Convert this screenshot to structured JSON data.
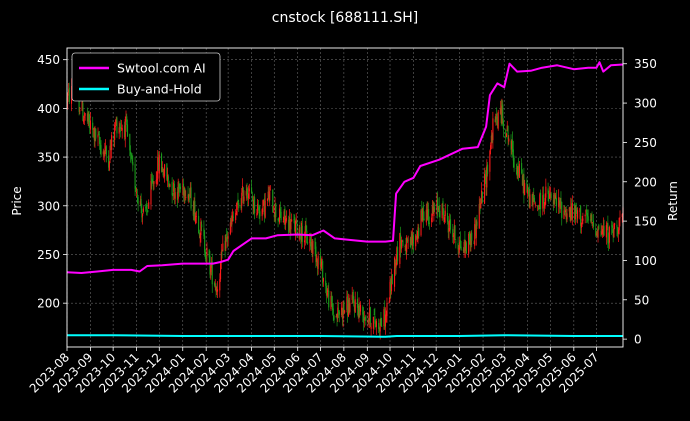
{
  "chart_data": {
    "type": "line",
    "title": "cnstock [688111.SH]",
    "left_axis": {
      "label": "Price",
      "range": [
        155,
        462
      ],
      "ticks": [
        200,
        250,
        300,
        350,
        400,
        450
      ]
    },
    "right_axis": {
      "label": "Return",
      "range": [
        -10,
        370
      ],
      "ticks": [
        0,
        50,
        100,
        150,
        200,
        250,
        300,
        350
      ]
    },
    "x_axis": {
      "start": "2023-08-01",
      "end": "2025-08-05",
      "tick_labels": [
        "2023-08",
        "2023-09",
        "2023-10",
        "2023-11",
        "2023-12",
        "2024-01",
        "2024-02",
        "2024-03",
        "2024-04",
        "2024-05",
        "2024-06",
        "2024-07",
        "2024-08",
        "2024-09",
        "2024-10",
        "2024-11",
        "2024-12",
        "2025-01",
        "2025-02",
        "2025-03",
        "2025-04",
        "2025-05",
        "2025-06",
        "2025-07"
      ],
      "tick_dates": [
        "2023-08-01",
        "2023-09-01",
        "2023-10-01",
        "2023-11-01",
        "2023-12-01",
        "2024-01-01",
        "2024-02-01",
        "2024-03-01",
        "2024-04-01",
        "2024-05-01",
        "2024-06-01",
        "2024-07-01",
        "2024-08-01",
        "2024-09-01",
        "2024-10-01",
        "2024-11-01",
        "2024-12-01",
        "2025-01-01",
        "2025-02-01",
        "2025-03-01",
        "2025-04-01",
        "2025-05-01",
        "2025-06-01",
        "2025-07-01"
      ]
    },
    "grid": true,
    "legend_position": "top-left",
    "candlestick_colors": {
      "up": "#ff1a1a",
      "down": "#1a9a1a"
    },
    "price_path": [
      [
        "2023-08-01",
        410
      ],
      [
        "2023-08-10",
        420
      ],
      [
        "2023-08-22",
        395
      ],
      [
        "2023-09-05",
        375
      ],
      [
        "2023-09-15",
        360
      ],
      [
        "2023-09-25",
        350
      ],
      [
        "2023-10-05",
        385
      ],
      [
        "2023-10-18",
        380
      ],
      [
        "2023-10-25",
        340
      ],
      [
        "2023-11-05",
        305
      ],
      [
        "2023-11-12",
        285
      ],
      [
        "2023-11-20",
        315
      ],
      [
        "2023-12-01",
        345
      ],
      [
        "2023-12-10",
        330
      ],
      [
        "2023-12-22",
        315
      ],
      [
        "2024-01-05",
        320
      ],
      [
        "2024-01-15",
        300
      ],
      [
        "2024-01-25",
        275
      ],
      [
        "2024-02-05",
        240
      ],
      [
        "2024-02-15",
        215
      ],
      [
        "2024-02-25",
        260
      ],
      [
        "2024-03-05",
        280
      ],
      [
        "2024-03-15",
        300
      ],
      [
        "2024-03-25",
        320
      ],
      [
        "2024-04-05",
        300
      ],
      [
        "2024-04-15",
        295
      ],
      [
        "2024-04-25",
        310
      ],
      [
        "2024-05-05",
        290
      ],
      [
        "2024-05-15",
        285
      ],
      [
        "2024-05-25",
        280
      ],
      [
        "2024-06-05",
        275
      ],
      [
        "2024-06-20",
        260
      ],
      [
        "2024-07-01",
        240
      ],
      [
        "2024-07-10",
        210
      ],
      [
        "2024-07-20",
        185
      ],
      [
        "2024-08-01",
        195
      ],
      [
        "2024-08-15",
        200
      ],
      [
        "2024-08-25",
        190
      ],
      [
        "2024-09-05",
        185
      ],
      [
        "2024-09-15",
        178
      ],
      [
        "2024-09-25",
        185
      ],
      [
        "2024-10-08",
        245
      ],
      [
        "2024-10-15",
        265
      ],
      [
        "2024-10-25",
        255
      ],
      [
        "2024-11-05",
        270
      ],
      [
        "2024-11-15",
        295
      ],
      [
        "2024-11-25",
        290
      ],
      [
        "2024-12-05",
        300
      ],
      [
        "2024-12-15",
        285
      ],
      [
        "2024-12-25",
        270
      ],
      [
        "2025-01-05",
        255
      ],
      [
        "2025-01-20",
        270
      ],
      [
        "2025-02-05",
        330
      ],
      [
        "2025-02-15",
        385
      ],
      [
        "2025-02-25",
        395
      ],
      [
        "2025-03-05",
        375
      ],
      [
        "2025-03-15",
        345
      ],
      [
        "2025-03-25",
        325
      ],
      [
        "2025-04-05",
        305
      ],
      [
        "2025-04-15",
        300
      ],
      [
        "2025-04-25",
        310
      ],
      [
        "2025-05-05",
        305
      ],
      [
        "2025-05-20",
        295
      ],
      [
        "2025-06-05",
        290
      ],
      [
        "2025-06-20",
        285
      ],
      [
        "2025-07-05",
        275
      ],
      [
        "2025-07-20",
        270
      ],
      [
        "2025-08-05",
        290
      ]
    ],
    "series": [
      {
        "name": "Swtool.com AI",
        "color": "#ff00ff",
        "axis": "right",
        "points": [
          [
            "2023-08-01",
            85
          ],
          [
            "2023-08-20",
            84
          ],
          [
            "2023-09-10",
            86
          ],
          [
            "2023-10-01",
            88
          ],
          [
            "2023-10-25",
            88
          ],
          [
            "2023-11-05",
            86
          ],
          [
            "2023-11-15",
            93
          ],
          [
            "2023-12-05",
            94
          ],
          [
            "2024-01-01",
            96
          ],
          [
            "2024-02-10",
            96
          ],
          [
            "2024-02-20",
            98
          ],
          [
            "2024-03-01",
            101
          ],
          [
            "2024-03-08",
            112
          ],
          [
            "2024-03-20",
            120
          ],
          [
            "2024-04-01",
            128
          ],
          [
            "2024-04-20",
            128
          ],
          [
            "2024-05-05",
            132
          ],
          [
            "2024-06-01",
            133
          ],
          [
            "2024-06-20",
            132
          ],
          [
            "2024-07-05",
            138
          ],
          [
            "2024-07-20",
            128
          ],
          [
            "2024-08-10",
            126
          ],
          [
            "2024-09-01",
            124
          ],
          [
            "2024-09-25",
            124
          ],
          [
            "2024-10-05",
            125
          ],
          [
            "2024-10-09",
            185
          ],
          [
            "2024-10-20",
            200
          ],
          [
            "2024-11-01",
            205
          ],
          [
            "2024-11-10",
            220
          ],
          [
            "2024-12-05",
            228
          ],
          [
            "2025-01-05",
            242
          ],
          [
            "2025-01-25",
            244
          ],
          [
            "2025-02-05",
            270
          ],
          [
            "2025-02-10",
            310
          ],
          [
            "2025-02-20",
            325
          ],
          [
            "2025-03-01",
            320
          ],
          [
            "2025-03-08",
            350
          ],
          [
            "2025-03-18",
            340
          ],
          [
            "2025-04-05",
            341
          ],
          [
            "2025-04-20",
            345
          ],
          [
            "2025-05-10",
            348
          ],
          [
            "2025-06-01",
            343
          ],
          [
            "2025-06-20",
            345
          ],
          [
            "2025-07-01",
            345
          ],
          [
            "2025-07-05",
            352
          ],
          [
            "2025-07-10",
            340
          ],
          [
            "2025-07-20",
            348
          ],
          [
            "2025-08-05",
            349
          ]
        ]
      },
      {
        "name": "Buy-and-Hold",
        "color": "#00ffff",
        "axis": "right",
        "points": [
          [
            "2023-08-01",
            5
          ],
          [
            "2023-10-01",
            5
          ],
          [
            "2024-01-01",
            4
          ],
          [
            "2024-04-01",
            4
          ],
          [
            "2024-07-01",
            4
          ],
          [
            "2024-09-25",
            3
          ],
          [
            "2024-10-10",
            4
          ],
          [
            "2025-01-01",
            4
          ],
          [
            "2025-03-01",
            5
          ],
          [
            "2025-06-01",
            4
          ],
          [
            "2025-08-05",
            4
          ]
        ]
      }
    ]
  }
}
